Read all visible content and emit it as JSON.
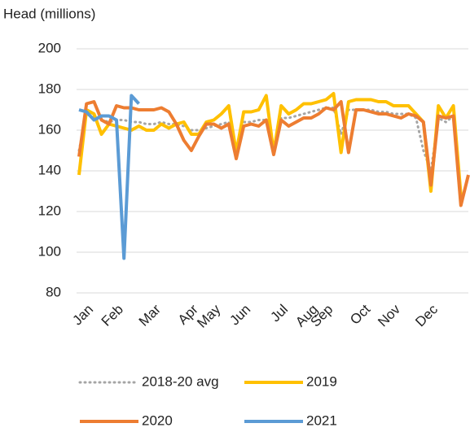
{
  "chart_data": {
    "type": "line",
    "y_label": "Head (millions)",
    "categories": [
      null,
      "Jan",
      null,
      null,
      null,
      "Feb",
      null,
      null,
      null,
      null,
      "Mar",
      null,
      null,
      null,
      null,
      "Apr",
      null,
      null,
      "May",
      null,
      null,
      null,
      "Jun",
      null,
      null,
      null,
      null,
      "Jul",
      null,
      null,
      null,
      "Aug",
      null,
      "Sep",
      null,
      null,
      null,
      null,
      "Oct",
      null,
      null,
      null,
      "Nov",
      null,
      null,
      null,
      null,
      "Dec",
      null,
      null,
      null,
      null,
      null
    ],
    "ylim": [
      80,
      200
    ],
    "yticks": [
      80,
      100,
      120,
      140,
      160,
      180,
      200
    ],
    "grid": true,
    "series": [
      {
        "name": "2018-20 avg",
        "color": "#a5a5a5",
        "dash": true,
        "values": [
          150,
          168,
          166,
          165,
          164,
          165,
          165,
          164,
          164,
          163,
          163,
          164,
          163,
          163,
          162,
          160,
          160,
          161,
          162,
          163,
          164,
          150,
          164,
          164,
          165,
          165,
          152,
          166,
          166,
          167,
          168,
          169,
          170,
          171,
          171,
          158,
          170,
          170,
          170,
          170,
          169,
          169,
          168,
          168,
          168,
          166,
          150,
          140,
          166,
          164,
          167,
          130,
          null
        ]
      },
      {
        "name": "2019",
        "color": "#ffc000",
        "values": [
          138,
          170,
          168,
          158,
          163,
          162,
          161,
          160,
          162,
          160,
          160,
          163,
          161,
          163,
          164,
          158,
          158,
          164,
          165,
          168,
          172,
          149,
          169,
          169,
          170,
          177,
          149,
          172,
          168,
          170,
          173,
          173,
          174,
          175,
          178,
          149,
          174,
          175,
          175,
          175,
          174,
          174,
          172,
          172,
          172,
          168,
          164,
          130,
          172,
          166,
          172,
          128,
          null
        ]
      },
      {
        "name": "2020",
        "color": "#ed7d31",
        "values": [
          147,
          173,
          174,
          165,
          163,
          172,
          171,
          171,
          170,
          170,
          170,
          171,
          169,
          163,
          155,
          150,
          157,
          163,
          163,
          161,
          163,
          146,
          162,
          163,
          162,
          165,
          148,
          165,
          162,
          164,
          166,
          166,
          168,
          171,
          170,
          174,
          149,
          170,
          170,
          169,
          168,
          168,
          167,
          166,
          168,
          167,
          164,
          133,
          167,
          166,
          167,
          123,
          138
        ]
      },
      {
        "name": "2021",
        "color": "#5b9bd5",
        "values": [
          170,
          169,
          165,
          167,
          167,
          165,
          97,
          177,
          173,
          null,
          null,
          null,
          null,
          null,
          null,
          null,
          null,
          null,
          null,
          null,
          null,
          null,
          null,
          null,
          null,
          null,
          null,
          null,
          null,
          null,
          null,
          null,
          null,
          null,
          null,
          null,
          null,
          null,
          null,
          null,
          null,
          null,
          null,
          null,
          null,
          null,
          null,
          null,
          null,
          null,
          null,
          null,
          null
        ]
      }
    ]
  }
}
